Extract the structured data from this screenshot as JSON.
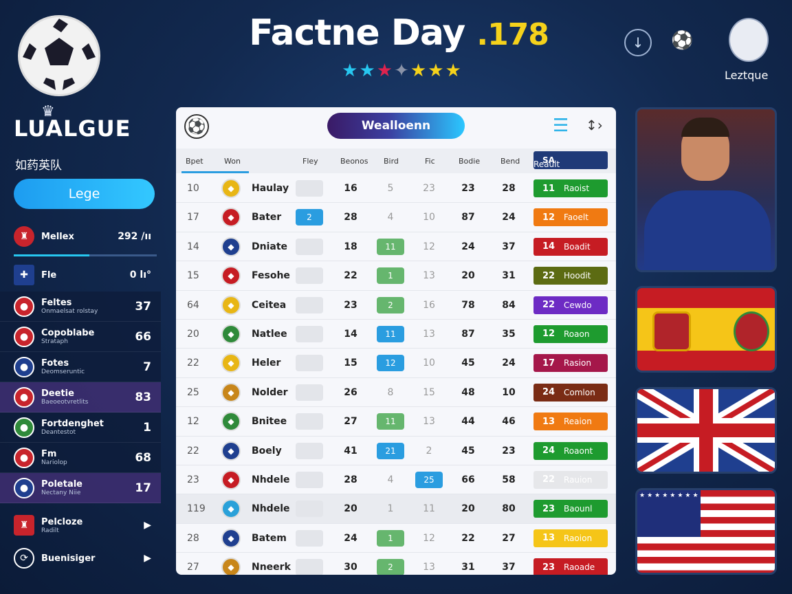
{
  "header": {
    "title": "Factne Day",
    "title_number": ".178",
    "stars": [
      {
        "glyph": "★",
        "color": "#27c7f0"
      },
      {
        "glyph": "★",
        "color": "#27c7f0"
      },
      {
        "glyph": "★",
        "color": "#e0234e"
      },
      {
        "glyph": "✦",
        "color": "#8a93a8"
      },
      {
        "glyph": "★",
        "color": "#f5d21b"
      },
      {
        "glyph": "★",
        "color": "#f5d21b"
      },
      {
        "glyph": "★",
        "color": "#f5d21b"
      }
    ],
    "right_label": "Leztque"
  },
  "sidebar": {
    "brand": "LUALGUE",
    "subtitle": "如药英队",
    "button": "Lege",
    "top_items": [
      {
        "name": "Mellex",
        "value": "292 /ıı"
      },
      {
        "name": "Fle",
        "value": "0 lı°"
      }
    ],
    "teams": [
      {
        "name": "Feltes",
        "sub": "Onmaelsat rolstay",
        "value": "37"
      },
      {
        "name": "Copoblabe",
        "sub": "Strataph",
        "value": "66"
      },
      {
        "name": "Fotes",
        "sub": "Deomseruntic",
        "value": "7"
      },
      {
        "name": "Deetie",
        "sub": "Baeoeotvretlits",
        "value": "83"
      },
      {
        "name": "Fortdenghet",
        "sub": "Deantestot",
        "value": "1"
      },
      {
        "name": "Fm",
        "sub": "Nariolop",
        "value": "68"
      },
      {
        "name": "Poletale",
        "sub": "Nectany Niie",
        "value": "17"
      }
    ],
    "bottom_items": [
      {
        "name": "Pelcloze",
        "sub": "Radilt"
      },
      {
        "name": "Buenisiger"
      }
    ]
  },
  "table": {
    "pill": "Wealloenn",
    "headers": [
      "Bpet",
      "Won",
      "Fley",
      "Beonos",
      "Bird",
      "Fic",
      "Bodie",
      "Bend",
      "SA",
      "Reault"
    ],
    "rows": [
      {
        "rank": "10",
        "name": "Haulay",
        "box": "",
        "boxcolor": "",
        "n1": "16",
        "g1": "5",
        "g2": "23",
        "n2": "23",
        "n3": "28",
        "badge_num": "11",
        "badge_text": "Raoist",
        "badge_color": "#1e9b2f"
      },
      {
        "rank": "17",
        "name": "Bater",
        "box": "2",
        "boxcolor": "blue",
        "n1": "28",
        "g1": "4",
        "g2": "10",
        "n2": "87",
        "n3": "24",
        "badge_num": "12",
        "badge_text": "Faoelt",
        "badge_color": "#f07a12"
      },
      {
        "rank": "14",
        "name": "Dniate",
        "box": "",
        "boxcolor": "",
        "n1": "18",
        "g1": "11",
        "g2": "12",
        "n2": "24",
        "n3": "37",
        "badge_num": "14",
        "badge_text": "Boadit",
        "badge_color": "#c61c23",
        "g1box": "green"
      },
      {
        "rank": "15",
        "name": "Fesohe",
        "box": "",
        "boxcolor": "",
        "n1": "22",
        "g1": "1",
        "g2": "13",
        "n2": "20",
        "n3": "31",
        "badge_num": "22",
        "badge_text": "Hoodit",
        "badge_color": "#5c6b12",
        "g1box": "green"
      },
      {
        "rank": "64",
        "name": "Ceitea",
        "box": "",
        "boxcolor": "",
        "n1": "23",
        "g1": "2",
        "g2": "16",
        "n2": "78",
        "n3": "84",
        "badge_num": "22",
        "badge_text": "Cewdo",
        "badge_color": "#6d2bc4",
        "g1box": "green"
      },
      {
        "rank": "20",
        "name": "Natlee",
        "box": "",
        "boxcolor": "",
        "n1": "14",
        "g1": "11",
        "g2": "13",
        "n2": "87",
        "n3": "35",
        "badge_num": "12",
        "badge_text": "Roaon",
        "badge_color": "#1e9b2f",
        "g1box": "blue"
      },
      {
        "rank": "22",
        "name": "Heler",
        "box": "",
        "boxcolor": "",
        "n1": "15",
        "g1": "12",
        "g2": "10",
        "n2": "45",
        "n3": "24",
        "badge_num": "17",
        "badge_text": "Rasion",
        "badge_color": "#a5174a",
        "g1box": "blue"
      },
      {
        "rank": "25",
        "name": "Nolder",
        "box": "",
        "boxcolor": "",
        "n1": "26",
        "g1": "8",
        "g2": "15",
        "n2": "48",
        "n3": "10",
        "badge_num": "24",
        "badge_text": "Comlon",
        "badge_color": "#7a2c15"
      },
      {
        "rank": "12",
        "name": "Bnitee",
        "box": "",
        "boxcolor": "",
        "n1": "27",
        "g1": "11",
        "g2": "13",
        "n2": "44",
        "n3": "46",
        "badge_num": "13",
        "badge_text": "Reaion",
        "badge_color": "#f07a12",
        "g1box": "green"
      },
      {
        "rank": "22",
        "name": "Boely",
        "box": "",
        "boxcolor": "",
        "n1": "41",
        "g1": "21",
        "g2": "2",
        "n2": "45",
        "n3": "23",
        "badge_num": "24",
        "badge_text": "Roaont",
        "badge_color": "#1e9b2f",
        "g1box": "blue"
      },
      {
        "rank": "23",
        "name": "Nhdele",
        "box": "",
        "boxcolor": "",
        "n1": "28",
        "g1": "4",
        "g2": "25",
        "n2": "66",
        "n3": "58",
        "badge_num": "22",
        "badge_text": "Rauion",
        "badge_color": "#e6e7ea",
        "g2box": "blue"
      },
      {
        "rank": "119",
        "name": "Nhdele",
        "box": "",
        "boxcolor": "",
        "n1": "20",
        "g1": "1",
        "g2": "11",
        "n2": "20",
        "n3": "80",
        "badge_num": "23",
        "badge_text": "Baounl",
        "badge_color": "#1e9b2f",
        "alt": true
      },
      {
        "rank": "28",
        "name": "Batem",
        "box": "",
        "boxcolor": "",
        "n1": "24",
        "g1": "1",
        "g2": "12",
        "n2": "22",
        "n3": "27",
        "badge_num": "13",
        "badge_text": "Raoion",
        "badge_color": "#f5c518",
        "g1box": "green"
      },
      {
        "rank": "27",
        "name": "Nneerk",
        "box": "",
        "boxcolor": "",
        "n1": "30",
        "g1": "2",
        "g2": "13",
        "n2": "31",
        "n3": "37",
        "badge_num": "23",
        "badge_text": "Raoade",
        "badge_color": "#c61c23",
        "g1box": "green"
      }
    ]
  }
}
